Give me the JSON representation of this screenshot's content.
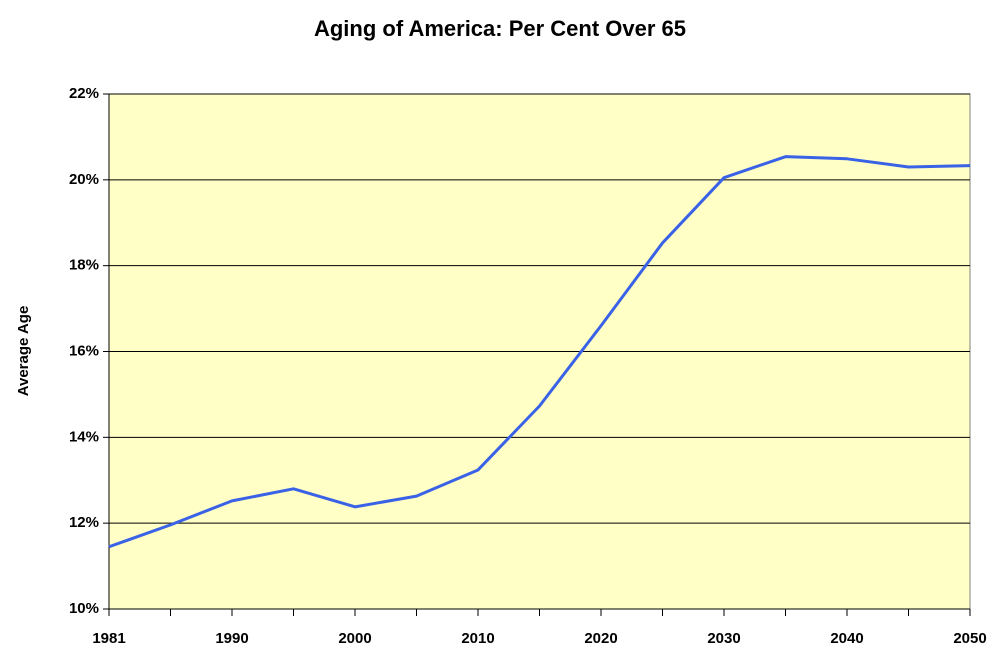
{
  "chart_data": {
    "type": "line",
    "title": "Aging of America: Per Cent Over 65",
    "y_label": "Average Age",
    "categories": [
      "1981",
      null,
      "1990",
      null,
      "2000",
      null,
      "2010",
      null,
      "2020",
      null,
      "2030",
      null,
      "2040",
      null,
      "2050"
    ],
    "series": [
      {
        "name": "Per Cent Over 65",
        "color": "#3a62e6",
        "values": [
          11.45,
          11.96,
          12.52,
          12.8,
          12.38,
          12.63,
          13.24,
          14.73,
          16.6,
          18.53,
          20.05,
          20.54,
          20.49,
          20.3,
          20.33
        ]
      }
    ],
    "ylim": [
      10,
      22
    ],
    "yticks": [
      {
        "value": 10,
        "label": "10%"
      },
      {
        "value": 12,
        "label": "12%"
      },
      {
        "value": 14,
        "label": "14%"
      },
      {
        "value": 16,
        "label": "16%"
      },
      {
        "value": 18,
        "label": "18%"
      },
      {
        "value": 20,
        "label": "20%"
      },
      {
        "value": 22,
        "label": "22%"
      }
    ],
    "grid": true,
    "plot_background": "#ffffc6"
  }
}
